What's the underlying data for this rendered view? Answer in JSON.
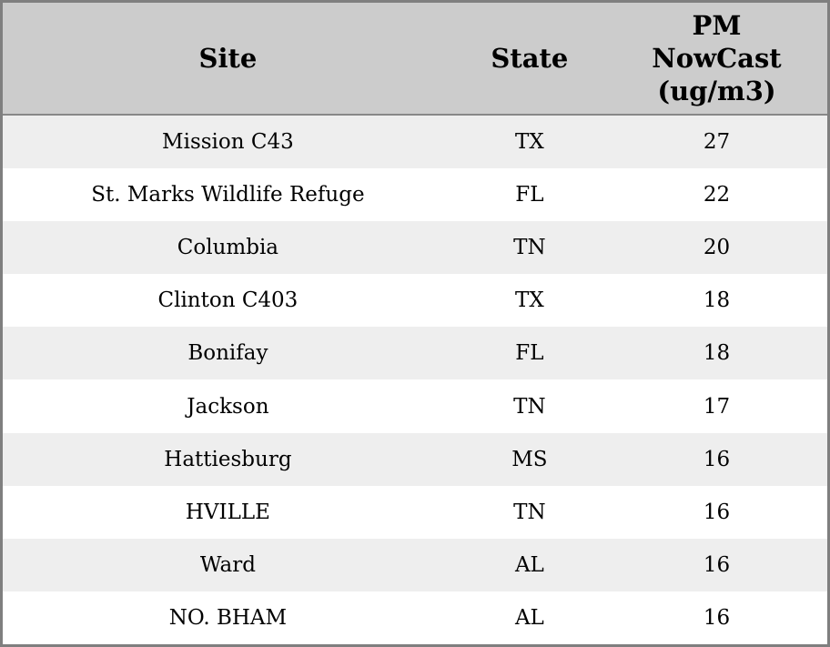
{
  "table": {
    "headers": {
      "site": "Site",
      "state": "State",
      "pm": "PM\nNowCast\n(ug/m3)"
    },
    "rows": [
      {
        "site": "Mission C43",
        "state": "TX",
        "pm": "27"
      },
      {
        "site": "St. Marks Wildlife Refuge",
        "state": "FL",
        "pm": "22"
      },
      {
        "site": "Columbia",
        "state": "TN",
        "pm": "20"
      },
      {
        "site": "Clinton C403",
        "state": "TX",
        "pm": "18"
      },
      {
        "site": "Bonifay",
        "state": "FL",
        "pm": "18"
      },
      {
        "site": "Jackson",
        "state": "TN",
        "pm": "17"
      },
      {
        "site": "Hattiesburg",
        "state": "MS",
        "pm": "16"
      },
      {
        "site": "HVILLE",
        "state": "TN",
        "pm": "16"
      },
      {
        "site": "Ward",
        "state": "AL",
        "pm": "16"
      },
      {
        "site": "NO. BHAM",
        "state": "AL",
        "pm": "16"
      }
    ]
  },
  "chart_data": {
    "type": "table",
    "title": "",
    "columns": [
      "Site",
      "State",
      "PM NowCast (ug/m3)"
    ],
    "rows": [
      [
        "Mission C43",
        "TX",
        27
      ],
      [
        "St. Marks Wildlife Refuge",
        "FL",
        22
      ],
      [
        "Columbia",
        "TN",
        20
      ],
      [
        "Clinton C403",
        "TX",
        18
      ],
      [
        "Bonifay",
        "FL",
        18
      ],
      [
        "Jackson",
        "TN",
        17
      ],
      [
        "Hattiesburg",
        "MS",
        16
      ],
      [
        "HVILLE",
        "TN",
        16
      ],
      [
        "Ward",
        "AL",
        16
      ],
      [
        "NO. BHAM",
        "AL",
        16
      ]
    ],
    "layout": {
      "header_bg": "#cccccc",
      "row_alt_bg": "#eeeeee",
      "row_bg": "#ffffff",
      "border_color": "#7f7f7f",
      "zebra_striping": true
    }
  }
}
